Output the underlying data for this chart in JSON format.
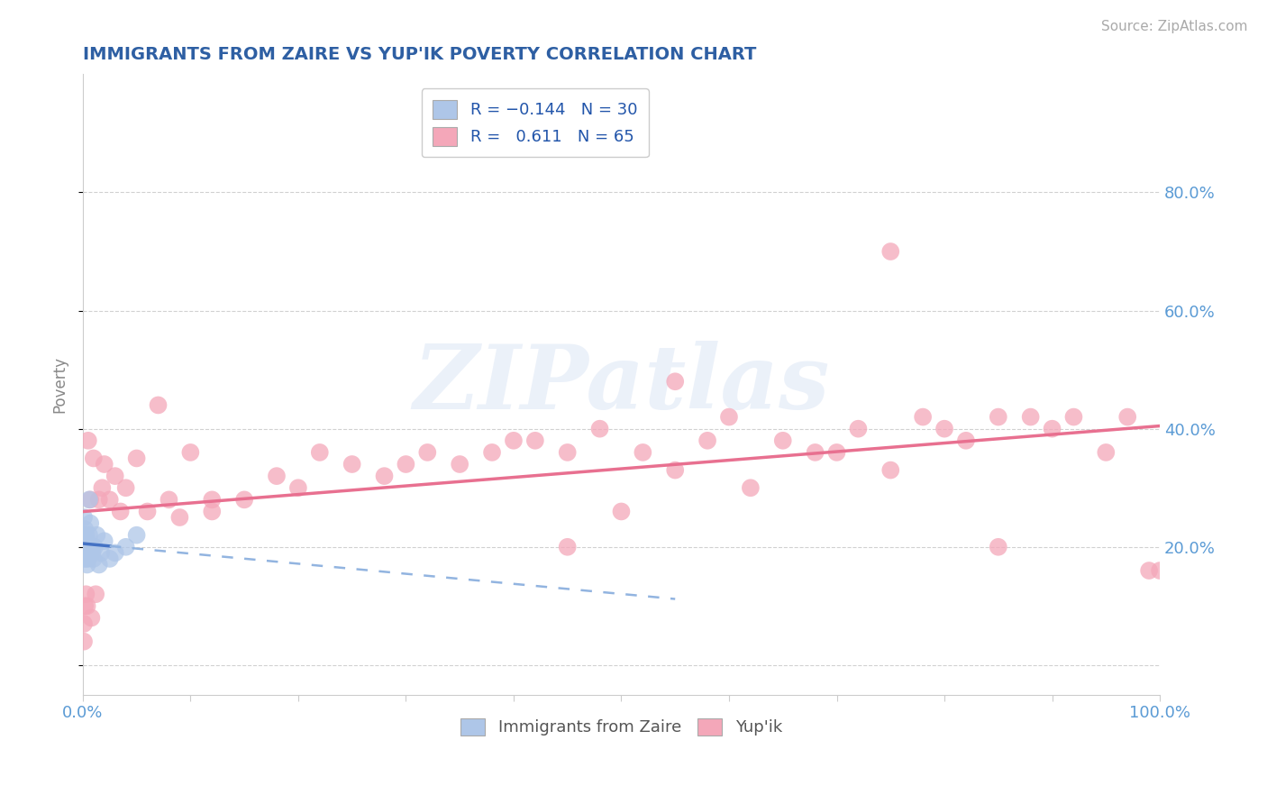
{
  "title": "IMMIGRANTS FROM ZAIRE VS YUP'IK POVERTY CORRELATION CHART",
  "source": "Source: ZipAtlas.com",
  "ylabel": "Poverty",
  "xlim": [
    0,
    1.0
  ],
  "ylim": [
    -0.05,
    1.0
  ],
  "ytick_positions": [
    0.0,
    0.2,
    0.4,
    0.6,
    0.8
  ],
  "ytick_labels": [
    "",
    "20.0%",
    "40.0%",
    "60.0%",
    "80.0%"
  ],
  "title_color": "#2E5FA3",
  "axis_color": "#5B9BD5",
  "zaire_color": "#AEC6E8",
  "yupik_color": "#F4A7B9",
  "watermark_text": "ZIPatlas",
  "zaire_points_x": [
    0.001,
    0.001,
    0.001,
    0.001,
    0.002,
    0.002,
    0.002,
    0.003,
    0.003,
    0.003,
    0.004,
    0.004,
    0.004,
    0.005,
    0.005,
    0.006,
    0.006,
    0.007,
    0.008,
    0.009,
    0.01,
    0.011,
    0.013,
    0.015,
    0.017,
    0.02,
    0.025,
    0.03,
    0.04,
    0.05
  ],
  "zaire_points_y": [
    0.25,
    0.22,
    0.2,
    0.18,
    0.23,
    0.21,
    0.19,
    0.22,
    0.2,
    0.18,
    0.21,
    0.19,
    0.17,
    0.2,
    0.18,
    0.28,
    0.22,
    0.24,
    0.2,
    0.19,
    0.18,
    0.2,
    0.22,
    0.17,
    0.19,
    0.21,
    0.18,
    0.19,
    0.2,
    0.22
  ],
  "yupik_points_x": [
    0.001,
    0.001,
    0.002,
    0.003,
    0.004,
    0.005,
    0.007,
    0.008,
    0.01,
    0.012,
    0.015,
    0.018,
    0.02,
    0.025,
    0.03,
    0.035,
    0.04,
    0.05,
    0.06,
    0.07,
    0.08,
    0.09,
    0.1,
    0.12,
    0.12,
    0.15,
    0.18,
    0.2,
    0.22,
    0.25,
    0.28,
    0.3,
    0.32,
    0.35,
    0.38,
    0.4,
    0.42,
    0.45,
    0.48,
    0.5,
    0.52,
    0.55,
    0.58,
    0.6,
    0.62,
    0.65,
    0.68,
    0.7,
    0.72,
    0.75,
    0.78,
    0.8,
    0.82,
    0.85,
    0.88,
    0.9,
    0.92,
    0.95,
    0.97,
    0.99,
    1.0,
    0.55,
    0.45,
    0.75,
    0.85
  ],
  "yupik_points_y": [
    0.07,
    0.04,
    0.1,
    0.12,
    0.1,
    0.38,
    0.28,
    0.08,
    0.35,
    0.12,
    0.28,
    0.3,
    0.34,
    0.28,
    0.32,
    0.26,
    0.3,
    0.35,
    0.26,
    0.44,
    0.28,
    0.25,
    0.36,
    0.26,
    0.28,
    0.28,
    0.32,
    0.3,
    0.36,
    0.34,
    0.32,
    0.34,
    0.36,
    0.34,
    0.36,
    0.38,
    0.38,
    0.36,
    0.4,
    0.26,
    0.36,
    0.33,
    0.38,
    0.42,
    0.3,
    0.38,
    0.36,
    0.36,
    0.4,
    0.33,
    0.42,
    0.4,
    0.38,
    0.42,
    0.42,
    0.4,
    0.42,
    0.36,
    0.42,
    0.16,
    0.16,
    0.48,
    0.2,
    0.7,
    0.2
  ]
}
